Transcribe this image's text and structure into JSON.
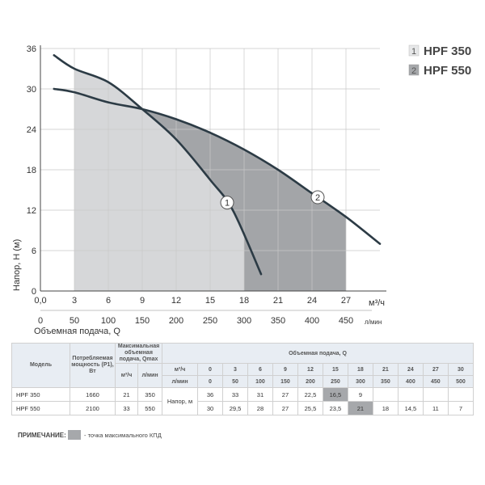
{
  "chart_data": {
    "type": "line",
    "xlabel_top_unit": "м³/ч",
    "xlabel_bottom_unit": "л/мин",
    "xlabel": "Объемная подача, Q",
    "ylabel": "Напор, Н (м)",
    "x_ticks": [
      "0,0",
      "3",
      "6",
      "9",
      "12",
      "15",
      "18",
      "21",
      "24",
      "27"
    ],
    "x_ticks_secondary": [
      "0",
      "50",
      "100",
      "150",
      "200",
      "250",
      "300",
      "350",
      "400",
      "450"
    ],
    "y_ticks": [
      "0",
      "6",
      "12",
      "18",
      "24",
      "30",
      "36"
    ],
    "xlim": [
      0,
      30
    ],
    "ylim": [
      0,
      36
    ],
    "grid": true,
    "shaded_regions": [
      {
        "series": "HPF 350",
        "x_range": [
          3,
          18
        ],
        "shade": "light"
      },
      {
        "series": "HPF 550",
        "x_range": [
          18,
          27
        ],
        "shade": "dark"
      }
    ],
    "series": [
      {
        "name": "HPF 350",
        "marker": "1",
        "x": [
          1.2,
          3,
          6,
          9,
          12,
          15,
          17,
          19.5
        ],
        "y": [
          35,
          33,
          31,
          27,
          22.5,
          16.5,
          12,
          2.5
        ]
      },
      {
        "name": "HPF 550",
        "marker": "2",
        "x": [
          1.2,
          3,
          6,
          9,
          12,
          15,
          18,
          21,
          24,
          27,
          30
        ],
        "y": [
          30,
          29.5,
          28,
          27,
          25.5,
          23.5,
          21,
          18,
          14.5,
          11,
          7
        ]
      }
    ]
  },
  "legend": [
    {
      "num": "1",
      "name": "HPF 350",
      "color": "#e6e7e8"
    },
    {
      "num": "2",
      "name": "HPF 550",
      "color": "#a6a8ab"
    }
  ],
  "colors": {
    "light_zone": "#d6d7d9",
    "dark_zone": "#a3a5a8",
    "curve": "#2c3b45",
    "grid": "#c8c8c8"
  },
  "table": {
    "h_model": "Модель",
    "h_power": "Потребляемая мощность (P1), Вт",
    "h_qmax": "Максимальная объемная подача, Qmax",
    "h_flow": "Объемная подача, Q",
    "u_m3h": "м³/ч",
    "u_lmin": "л/мин",
    "head_label": "Напор, м",
    "flow_m3h": [
      "0",
      "3",
      "6",
      "9",
      "12",
      "15",
      "18",
      "21",
      "24",
      "27",
      "30"
    ],
    "flow_lmin": [
      "0",
      "50",
      "100",
      "150",
      "200",
      "250",
      "300",
      "350",
      "400",
      "450",
      "500"
    ],
    "rows": [
      {
        "model": "HPF 350",
        "power": "1660",
        "qmax_m3h": "21",
        "qmax_lmin": "350",
        "heads": [
          "36",
          "33",
          "31",
          "27",
          "22,5",
          "16,5",
          "9",
          "",
          "",
          "",
          ""
        ]
      },
      {
        "model": "HPF 550",
        "power": "2100",
        "qmax_m3h": "33",
        "qmax_lmin": "550",
        "heads": [
          "30",
          "29,5",
          "28",
          "27",
          "25,5",
          "23,5",
          "21",
          "18",
          "14,5",
          "11",
          "7"
        ]
      }
    ]
  },
  "note": {
    "label": "ПРИМЕЧАНИЕ:",
    "text": "- точка максимального КПД"
  }
}
